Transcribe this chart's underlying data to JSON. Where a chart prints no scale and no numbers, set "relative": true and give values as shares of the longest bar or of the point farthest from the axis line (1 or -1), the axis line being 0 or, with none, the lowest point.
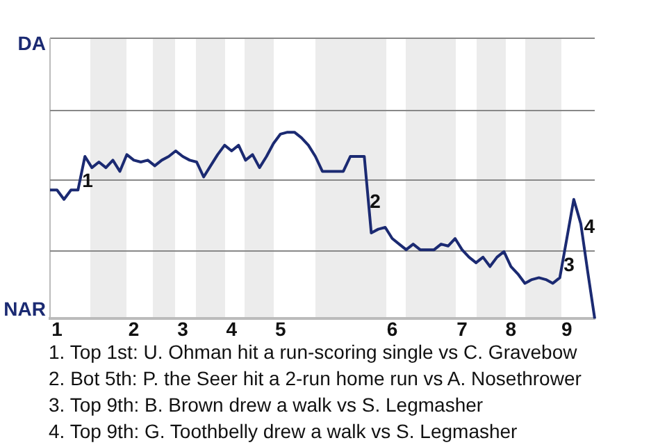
{
  "chart_data": {
    "type": "line",
    "categories": [
      null,
      "1",
      null,
      null,
      null,
      null,
      null,
      null,
      null,
      null,
      null,
      null,
      "2",
      null,
      null,
      null,
      null,
      null,
      null,
      "3",
      null,
      null,
      null,
      null,
      null,
      null,
      "4",
      null,
      null,
      null,
      null,
      null,
      null,
      "5",
      null,
      null,
      null,
      null,
      null,
      null,
      null,
      null,
      null,
      null,
      null,
      null,
      null,
      null,
      null,
      "6",
      null,
      null,
      null,
      null,
      null,
      null,
      null,
      null,
      null,
      "7",
      null,
      null,
      null,
      null,
      null,
      null,
      "8",
      null,
      null,
      null,
      null,
      null,
      null,
      null,
      "9",
      null,
      null,
      null,
      null
    ],
    "series": [
      {
        "color": "#1b2a72",
        "values": [
          0.69,
          0.69,
          0.64,
          0.69,
          0.69,
          0.87,
          0.81,
          0.84,
          0.81,
          0.85,
          0.79,
          0.88,
          0.85,
          0.84,
          0.85,
          0.82,
          0.85,
          0.87,
          0.9,
          0.87,
          0.85,
          0.84,
          0.76,
          0.82,
          0.88,
          0.93,
          0.9,
          0.93,
          0.85,
          0.88,
          0.81,
          0.87,
          0.94,
          0.99,
          1,
          1,
          0.97,
          0.93,
          0.87,
          0.79,
          0.79,
          0.79,
          0.79,
          0.87,
          0.87,
          0.87,
          0.46,
          0.48,
          0.49,
          0.43,
          0.4,
          0.37,
          0.4,
          0.37,
          0.37,
          0.37,
          0.4,
          0.39,
          0.43,
          0.37,
          0.33,
          0.3,
          0.33,
          0.28,
          0.33,
          0.36,
          0.28,
          0.24,
          0.19,
          0.21,
          0.22,
          0.21,
          0.19,
          0.22,
          0.43,
          0.64,
          0.51,
          0.25,
          0
        ]
      }
    ],
    "relative": true,
    "ref_lines": [
      {
        "axis": "y",
        "value": 0.37,
        "color": "#888888"
      },
      {
        "axis": "y",
        "value": 0.75,
        "color": "#888888"
      },
      {
        "axis": "y",
        "value": 1.12,
        "color": "#888888"
      }
    ],
    "legend": false,
    "marker": "none",
    "line_style": "solid",
    "annotations": [
      "DA",
      "NAR",
      "1",
      "2",
      "3",
      "4",
      "1. Top 1st: U. Ohman hit a run-scoring single vs C. Gravebow",
      "2. Bot 5th: P. the Seer hit a 2-run home run vs A. Nosethrower",
      "3. Top 9th: B. Brown drew a walk vs S. Legmasher",
      "4. Top 9th: G. Toothbelly drew a walk vs S. Legmasher"
    ]
  }
}
